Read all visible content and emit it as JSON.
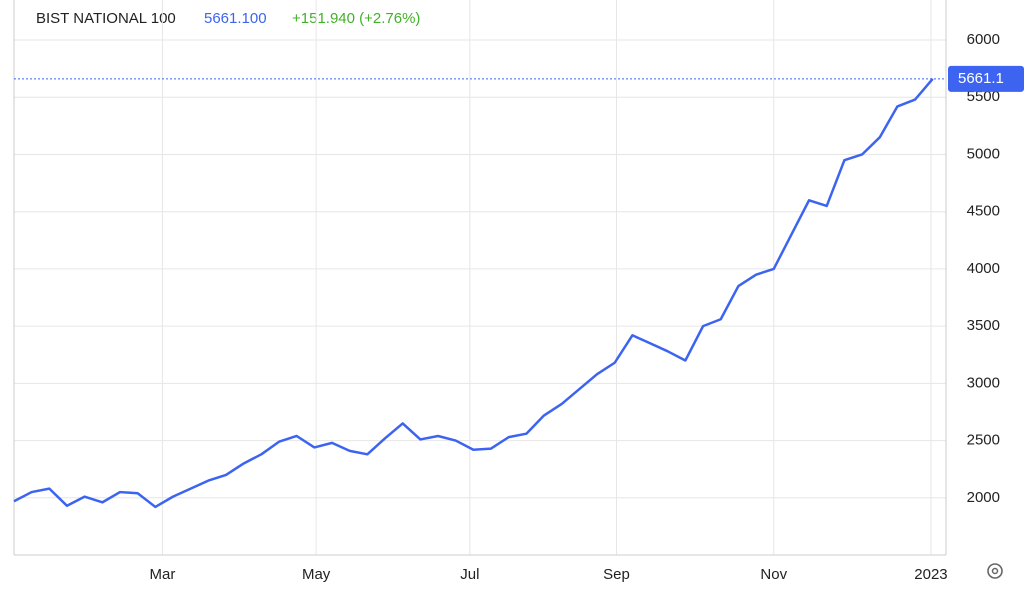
{
  "chart_data": {
    "type": "line",
    "title": "BIST NATIONAL 100",
    "last_price": "5661.100",
    "change": "+151.940 (+2.76%)",
    "series": [
      {
        "name": "BIST NATIONAL 100",
        "color": "#3d64f0",
        "values": [
          1970,
          2050,
          2080,
          1930,
          2010,
          1960,
          2050,
          2040,
          1920,
          2010,
          2080,
          2150,
          2200,
          2300,
          2380,
          2490,
          2540,
          2440,
          2480,
          2410,
          2380,
          2520,
          2650,
          2510,
          2540,
          2500,
          2420,
          2430,
          2530,
          2560,
          2720,
          2820,
          2950,
          3080,
          3180,
          3420,
          3350,
          3280,
          3200,
          3500,
          3560,
          3850,
          3950,
          4000,
          4300,
          4600,
          4550,
          4950,
          5000,
          5150,
          5420,
          5480,
          5661.1
        ],
        "last_label": "5661.1"
      }
    ],
    "xlim": [
      0,
      52.75
    ],
    "xticks": [
      {
        "value": 8.4,
        "label": "Mar"
      },
      {
        "value": 17.1,
        "label": "May"
      },
      {
        "value": 25.8,
        "label": "Jul"
      },
      {
        "value": 34.1,
        "label": "Sep"
      },
      {
        "value": 43.0,
        "label": "Nov"
      },
      {
        "value": 51.9,
        "label": "2023"
      }
    ],
    "ylim": [
      1500,
      6350
    ],
    "yticks": [
      2000,
      2500,
      3000,
      3500,
      4000,
      4500,
      5000,
      5500,
      6000
    ],
    "grid": true
  }
}
